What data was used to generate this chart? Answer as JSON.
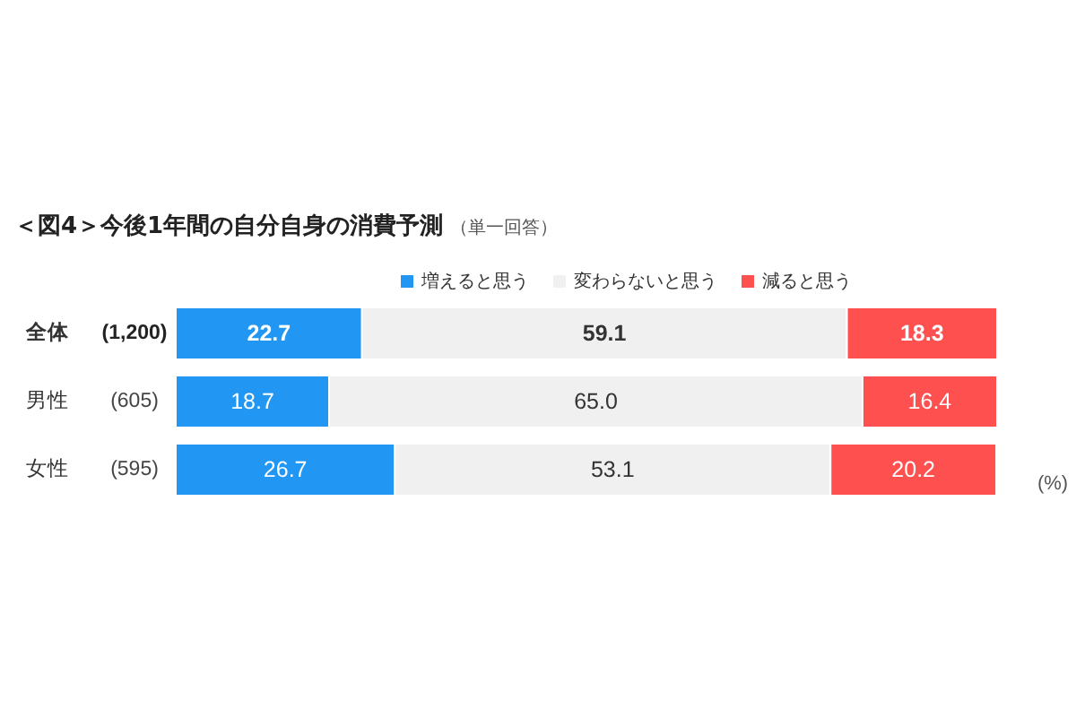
{
  "chart_data": {
    "type": "bar",
    "orientation": "horizontal",
    "stacked": true,
    "title": "＜図4＞今後1年間の自分自身の消費予測",
    "subtitle": "（単一回答）",
    "categories": [
      "全体",
      "男性",
      "女性"
    ],
    "series": [
      {
        "name": "増えると思う",
        "color": "#2196f3",
        "values": [
          22.7,
          18.7,
          26.7
        ],
        "value_labels": [
          "22.7",
          "18.7",
          "26.7"
        ]
      },
      {
        "name": "変わらないと思う",
        "color": "#f0f0f0",
        "values": [
          59.1,
          65.0,
          53.1
        ],
        "value_labels": [
          "59.1",
          "65.0",
          "53.1"
        ]
      },
      {
        "name": "減ると思う",
        "color": "#ff5050",
        "values": [
          18.3,
          16.4,
          20.2
        ],
        "value_labels": [
          "18.3",
          "16.4",
          "20.2"
        ]
      }
    ],
    "annotations": [
      "(1,200)",
      "(605)",
      "(595)",
      "(%)"
    ],
    "legend": "top",
    "grid": false,
    "tick_labels": "y"
  }
}
